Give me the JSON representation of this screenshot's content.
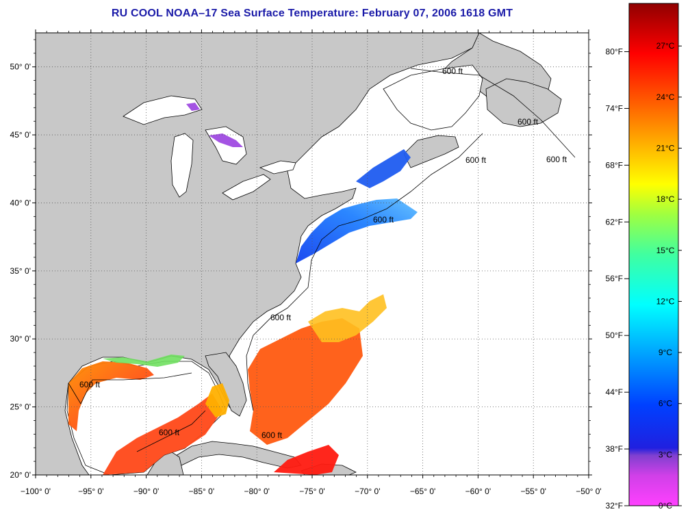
{
  "title": "RU COOL  NOAA–17  Sea Surface Temperature:  February 07, 2006 1618 GMT",
  "map": {
    "lon_range": [
      -100,
      -50
    ],
    "lat_range": [
      20,
      52.5
    ],
    "lon_ticks": [
      "−100° 0'",
      "−95° 0'",
      "−90° 0'",
      "−85° 0'",
      "−80° 0'",
      "−75° 0'",
      "−70° 0'",
      "−65° 0'",
      "−60° 0'",
      "−55° 0'",
      "−50° 0'"
    ],
    "lat_ticks": [
      "20° 0'",
      "25° 0'",
      "30° 0'",
      "35° 0'",
      "40° 0'",
      "45° 0'",
      "50° 0'"
    ],
    "lon_values": [
      -100,
      -95,
      -90,
      -85,
      -80,
      -75,
      -70,
      -65,
      -60,
      -55,
      -50
    ],
    "lat_values": [
      20,
      25,
      30,
      35,
      40,
      45,
      50
    ],
    "grid": true,
    "land_color": "#c8c8c8",
    "contour_label": "600 ft"
  },
  "colorbar": {
    "fahrenheit_labels": [
      "32°F",
      "38°F",
      "44°F",
      "50°F",
      "56°F",
      "62°F",
      "68°F",
      "74°F",
      "80°F"
    ],
    "fahrenheit_values": [
      32,
      38,
      44,
      50,
      56,
      62,
      68,
      74,
      80
    ],
    "celsius_labels": [
      "0°C",
      "3°C",
      "6°C",
      "9°C",
      "12°C",
      "15°C",
      "18°C",
      "21°C",
      "24°C",
      "27°C"
    ],
    "celsius_values": [
      0,
      3,
      6,
      9,
      12,
      15,
      18,
      21,
      24,
      27
    ],
    "range_c": [
      0,
      29.5
    ]
  }
}
